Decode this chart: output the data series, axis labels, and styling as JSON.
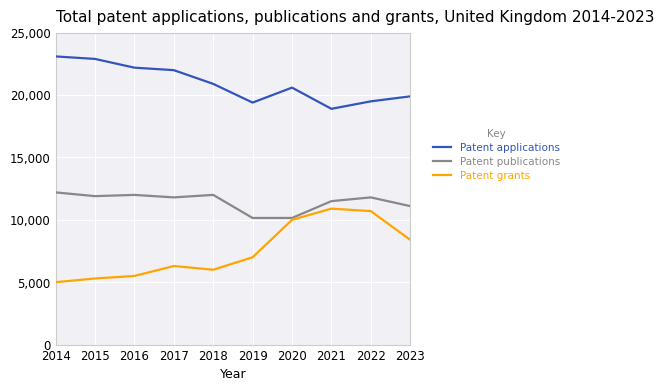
{
  "title": "Total patent applications, publications and grants, United Kingdom 2014-2023",
  "xlabel": "Year",
  "years": [
    2014,
    2015,
    2016,
    2017,
    2018,
    2019,
    2020,
    2021,
    2022,
    2023
  ],
  "patent_applications": [
    23100,
    22900,
    22200,
    22000,
    20900,
    19400,
    20600,
    18900,
    19500,
    19900
  ],
  "patent_publications": [
    12200,
    11900,
    12000,
    11800,
    12000,
    10150,
    10150,
    11500,
    11800,
    11100
  ],
  "patent_grants": [
    5000,
    5300,
    5500,
    6300,
    6000,
    7000,
    10000,
    10900,
    10700,
    8400
  ],
  "color_applications": "#3355bb",
  "color_publications": "#888888",
  "color_grants": "#FFA500",
  "legend_title": "Key",
  "legend_title_color": "#888888",
  "legend_labels": [
    "Patent applications",
    "Patent publications",
    "Patent grants"
  ],
  "legend_colors": [
    "#3355bb",
    "#888888",
    "#FFA500"
  ],
  "ylim": [
    0,
    25000
  ],
  "yticks": [
    0,
    5000,
    10000,
    15000,
    20000,
    25000
  ],
  "bg_color": "#ffffff",
  "plot_bg_color": "#f0f0f5",
  "grid_color": "#ffffff",
  "title_fontsize": 11,
  "axis_label_fontsize": 9,
  "tick_fontsize": 8.5,
  "linewidth": 1.6
}
